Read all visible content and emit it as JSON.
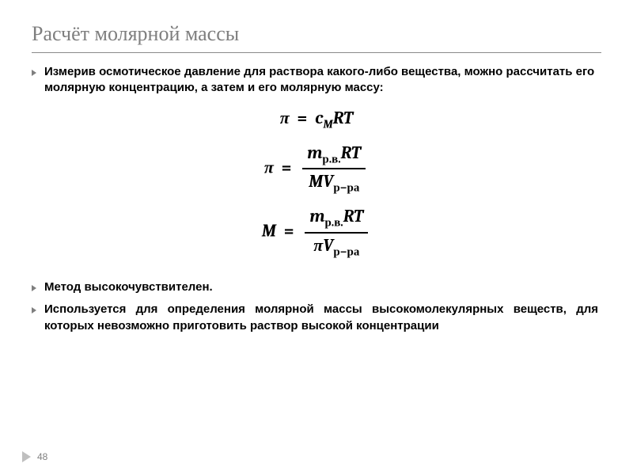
{
  "slide": {
    "title": "Расчёт молярной массы",
    "bullets": {
      "b1": "Измерив осмотическое давление для раствора какого-либо вещества, можно рассчитать его молярную концентрацию, а затем и его молярную массу:",
      "b2": "Метод высокочувствителен.",
      "b3": "Используется для определения молярной массы высокомолекулярных веществ, для которых невозможно приготовить раствор высокой концентрации"
    },
    "formulas": {
      "eq1": {
        "lhs_sym": "π",
        "rhs_c": "c",
        "rhs_c_sub": "M",
        "rhs_tail": "RT"
      },
      "eq2": {
        "lhs_sym": "π",
        "num_m": "m",
        "num_m_sub": "р.в.",
        "num_tail": "RT",
        "den_M": "M",
        "den_V": "V",
        "den_V_sub": "р−ра"
      },
      "eq3": {
        "lhs_sym": "M",
        "num_m": "m",
        "num_m_sub": "р.в.",
        "num_tail": "RT",
        "den_pi": "π",
        "den_V": "V",
        "den_V_sub": "р−ра"
      }
    },
    "page_number": "48"
  },
  "style": {
    "title_color": "#7f7f7f",
    "title_fontsize_pt": 20,
    "body_fontsize_pt": 11,
    "body_font_weight": "bold",
    "formula_fontsize_pt": 17,
    "bullet_marker_color": "#7f7f7f",
    "nav_icon_color": "#bfbfbf",
    "page_number_color": "#808080",
    "background_color": "#ffffff",
    "divider_color": "#8a8a8a"
  }
}
